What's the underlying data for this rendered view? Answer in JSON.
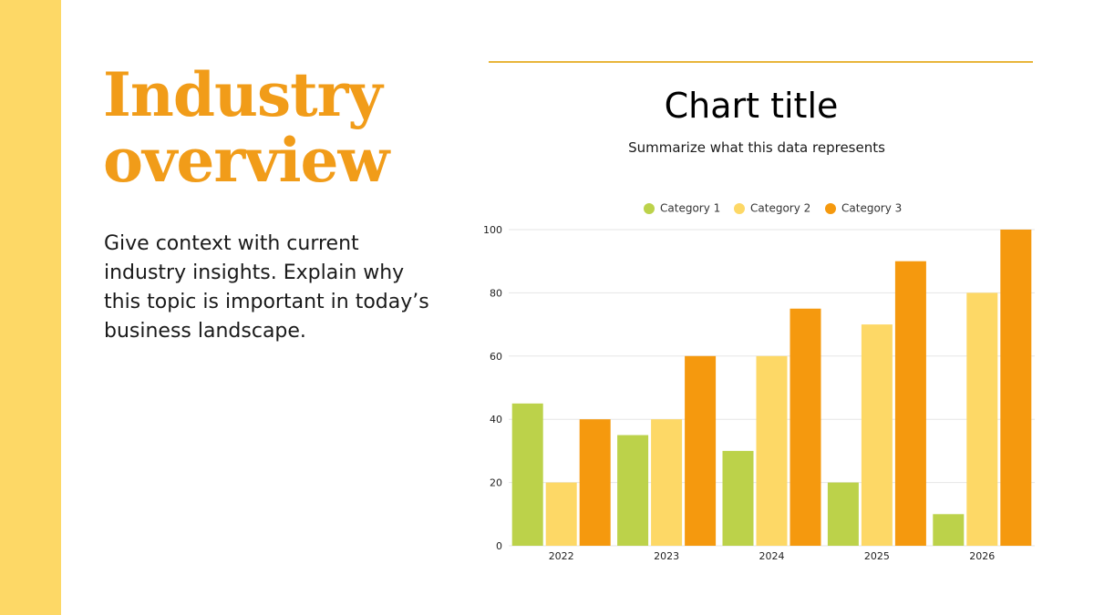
{
  "slide": {
    "title_lines": [
      "Industry",
      "overview"
    ],
    "body": "Give context with current industry insights. Explain why this topic is important in today’s business landscape."
  },
  "colors": {
    "accent_bar": "#fdd866",
    "title": "#f19c19",
    "rule": "#e8b53a"
  },
  "chart_data": {
    "type": "bar",
    "title": "Chart title",
    "subtitle": "Summarize what this data represents",
    "categories": [
      "2022",
      "2023",
      "2024",
      "2025",
      "2026"
    ],
    "series": [
      {
        "name": "Category 1",
        "color": "#bcd24a",
        "values": [
          45,
          35,
          30,
          20,
          10
        ]
      },
      {
        "name": "Category 2",
        "color": "#fdd866",
        "values": [
          20,
          40,
          60,
          70,
          80
        ]
      },
      {
        "name": "Category 3",
        "color": "#f5990e",
        "values": [
          40,
          60,
          75,
          90,
          100
        ]
      }
    ],
    "ylim": [
      0,
      100
    ],
    "yticks": [
      0,
      20,
      40,
      60,
      80,
      100
    ],
    "grid": true,
    "legend": "top",
    "xlabel": "",
    "ylabel": ""
  }
}
